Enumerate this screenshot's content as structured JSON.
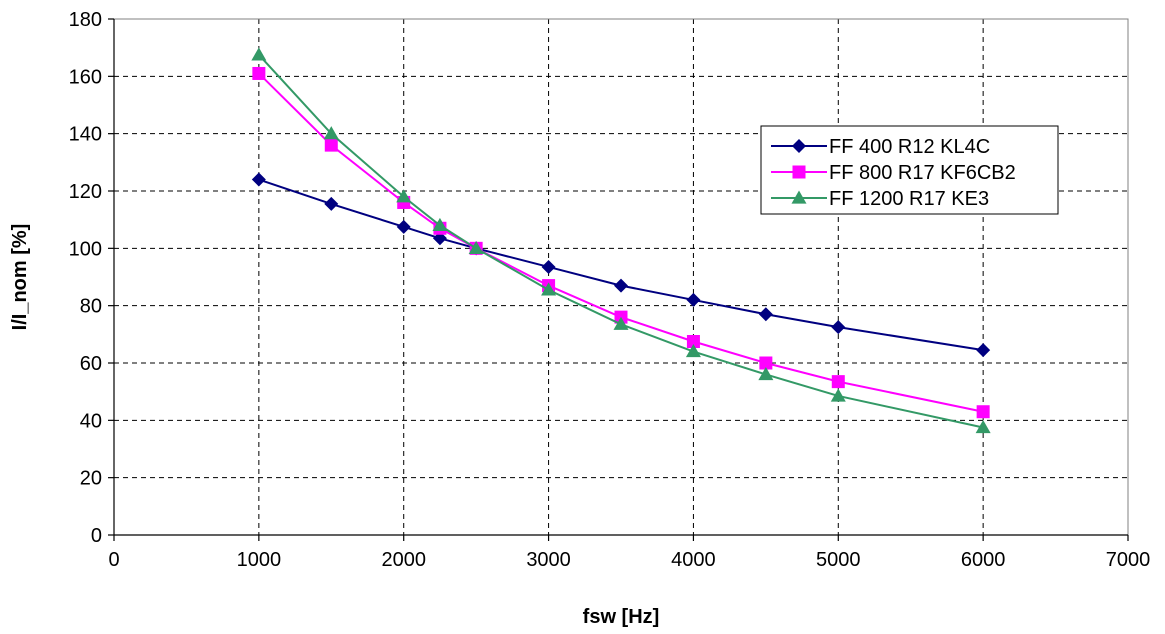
{
  "chart_data": {
    "type": "line",
    "title": "",
    "xlabel": "fsw [Hz]",
    "ylabel": "I/I_nom [%]",
    "xlim": [
      0,
      7000
    ],
    "ylim": [
      0,
      180
    ],
    "xticks": [
      0,
      1000,
      2000,
      3000,
      4000,
      5000,
      6000,
      7000
    ],
    "yticks": [
      0,
      20,
      40,
      60,
      80,
      100,
      120,
      140,
      160,
      180
    ],
    "xtick_labels": [
      "0",
      "1000",
      "2000",
      "3000",
      "4000",
      "5000",
      "6000",
      "7000"
    ],
    "ytick_labels": [
      "0",
      "20",
      "40",
      "60",
      "80",
      "100",
      "120",
      "140",
      "160",
      "180"
    ],
    "grid": true,
    "legend_position": "right",
    "series": [
      {
        "name": "FF 400 R12 KL4C",
        "color": "#000080",
        "marker": "diamond",
        "x": [
          1000,
          1500,
          2000,
          2250,
          2500,
          3000,
          3500,
          4000,
          4500,
          5000,
          6000
        ],
        "y": [
          124,
          115.5,
          107.5,
          103.5,
          100,
          93.5,
          87,
          82,
          77,
          72.5,
          64.5
        ]
      },
      {
        "name": "FF 800 R17 KF6CB2",
        "color": "#ff00ff",
        "marker": "square",
        "x": [
          1000,
          1500,
          2000,
          2250,
          2500,
          3000,
          3500,
          4000,
          4500,
          5000,
          6000
        ],
        "y": [
          161,
          136,
          116,
          107,
          100,
          87,
          76,
          67.5,
          60,
          53.5,
          43
        ]
      },
      {
        "name": "FF 1200 R17 KE3",
        "color": "#339966",
        "marker": "triangle",
        "x": [
          1000,
          1500,
          2000,
          2250,
          2500,
          3000,
          3500,
          4000,
          4500,
          5000,
          6000
        ],
        "y": [
          167.5,
          140,
          118,
          108,
          100,
          85.5,
          73.5,
          64,
          56,
          48.5,
          37.5
        ]
      }
    ]
  }
}
